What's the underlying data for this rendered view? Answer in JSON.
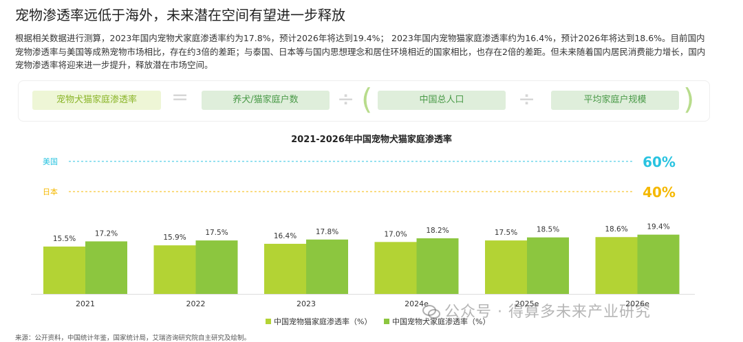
{
  "header": {
    "title": "宠物渗透率远低于海外，未来潜在空间有望进一步释放",
    "description": "根据相关数据进行测算，2023年国内宠物犬家庭渗透率约为17.8%，预计2026年将达到19.4%； 2023年国内宠物猫家庭渗透率约为16.4%，预计2026年将达到18.6%。目前国内宠物渗透率与美国等成熟宠物市场相比，存在约3倍的差距；与泰国、日本等与国内思想理念和居住环境相近的国家相比，也存在2倍的差距。但未来随着国内居民消费能力增长，国内宠物渗透率将迎来进一步提升，释放潜在市场空间。"
  },
  "formula": {
    "lead": "宠物犬猫家庭渗透率",
    "equals": "=",
    "term1": "养犬/猫家庭户数",
    "divide": "÷",
    "open_paren": "(",
    "term2": "中国总人口",
    "term3": "平均家庭户规模",
    "close_paren": ")"
  },
  "chart_data": {
    "type": "bar",
    "title": "2021-2026年中国宠物犬猫家庭渗透率",
    "categories": [
      "2021",
      "2022",
      "2023",
      "2024e",
      "2025e",
      "2026e"
    ],
    "series": [
      {
        "name": "中国宠物猫家庭渗透率（%）",
        "values": [
          15.5,
          15.9,
          16.4,
          17.0,
          17.5,
          18.6
        ],
        "labels": [
          "15.5%",
          "15.9%",
          "16.4%",
          "17.0%",
          "17.5%",
          "18.6%"
        ],
        "color": "#b3d334"
      },
      {
        "name": "中国宠物犬家庭渗透率（%）",
        "values": [
          17.2,
          17.5,
          17.8,
          18.2,
          18.5,
          19.4
        ],
        "labels": [
          "17.2%",
          "17.5%",
          "17.8%",
          "18.2%",
          "18.5%",
          "19.4%"
        ],
        "color": "#8cc63f"
      }
    ],
    "references": [
      {
        "name": "美国",
        "value": 60,
        "label": "60%",
        "color": "#29c3e0"
      },
      {
        "name": "日本",
        "value": 40,
        "label": "40%",
        "color": "#f5b800"
      }
    ]
  },
  "source": "来源：公开资料，中国统计年鉴，国家统计局，艾瑞咨询研究院自主研究及绘制。",
  "watermark": "公众号 · 得算多未来产业研究"
}
